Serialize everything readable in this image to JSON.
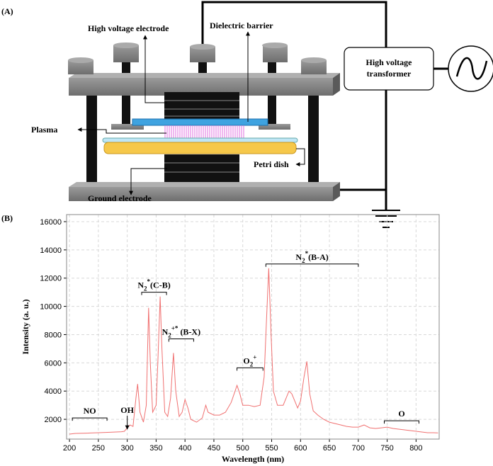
{
  "diagram": {
    "panel_label": "(A)",
    "labels": {
      "hv_electrode": "High voltage electrode",
      "dielectric": "Dielectric barrier",
      "plasma": "Plasma",
      "petri": "Petri dish",
      "ground": "Ground electrode",
      "transformer": [
        "High voltage",
        "transformer"
      ]
    }
  },
  "chart_data": {
    "type": "line",
    "panel_label": "(B)",
    "xlabel": "Wavelength (nm)",
    "ylabel": "Intensity (a. u.)",
    "color": "#f07070",
    "grid": true,
    "xlim": [
      195,
      840
    ],
    "ylim": [
      600,
      16500
    ],
    "xticks": [
      200,
      250,
      300,
      350,
      400,
      450,
      500,
      550,
      600,
      650,
      700,
      750,
      800
    ],
    "yticks": [
      2000,
      4000,
      6000,
      8000,
      10000,
      12000,
      14000,
      16000
    ],
    "x": [
      200,
      210,
      230,
      250,
      270,
      290,
      295,
      300,
      305,
      310,
      315,
      318,
      322,
      328,
      333,
      337,
      340,
      344,
      350,
      353,
      357,
      360,
      365,
      370,
      375,
      380,
      384,
      390,
      395,
      400,
      405,
      410,
      420,
      430,
      436,
      440,
      450,
      460,
      470,
      480,
      490,
      495,
      500,
      510,
      520,
      530,
      537,
      541,
      545,
      549,
      553,
      560,
      570,
      580,
      585,
      595,
      600,
      606,
      611,
      616,
      622,
      630,
      640,
      650,
      660,
      670,
      680,
      690,
      700,
      710,
      720,
      730,
      740,
      750,
      760,
      770,
      780,
      790,
      800,
      810,
      820,
      830,
      838
    ],
    "values": [
      950,
      1000,
      1020,
      1050,
      1080,
      1120,
      1150,
      1400,
      1600,
      1500,
      3500,
      4500,
      2500,
      1800,
      3000,
      9900,
      6000,
      2500,
      3000,
      6000,
      10700,
      7000,
      2500,
      2200,
      3500,
      6700,
      4000,
      2200,
      2500,
      3400,
      2800,
      2000,
      1800,
      2100,
      3000,
      2500,
      2300,
      2300,
      2500,
      3200,
      4400,
      3800,
      3000,
      3000,
      2900,
      3000,
      5000,
      9000,
      12700,
      8000,
      4000,
      3000,
      3000,
      4000,
      3800,
      2800,
      3300,
      5000,
      6100,
      3800,
      2600,
      2300,
      2000,
      1800,
      1700,
      1600,
      1500,
      1450,
      1450,
      1600,
      1400,
      1350,
      1400,
      1450,
      1350,
      1300,
      1250,
      1200,
      1150,
      1100,
      1050,
      1050,
      1040
    ],
    "annotations": [
      {
        "text": "NO"
      },
      {
        "text": "OH"
      },
      {
        "base": "N",
        "sub": "2",
        "sup": "*",
        "rest": "(C-B)"
      },
      {
        "base": "N",
        "sub": "2",
        "sup": "+*",
        "rest": " (B-X)"
      },
      {
        "base": "O",
        "sub": "2",
        "sup": "+"
      },
      {
        "base": "N",
        "sub": "2",
        "sup": "*",
        "rest": "(B-A)"
      },
      {
        "text": "O"
      }
    ]
  }
}
